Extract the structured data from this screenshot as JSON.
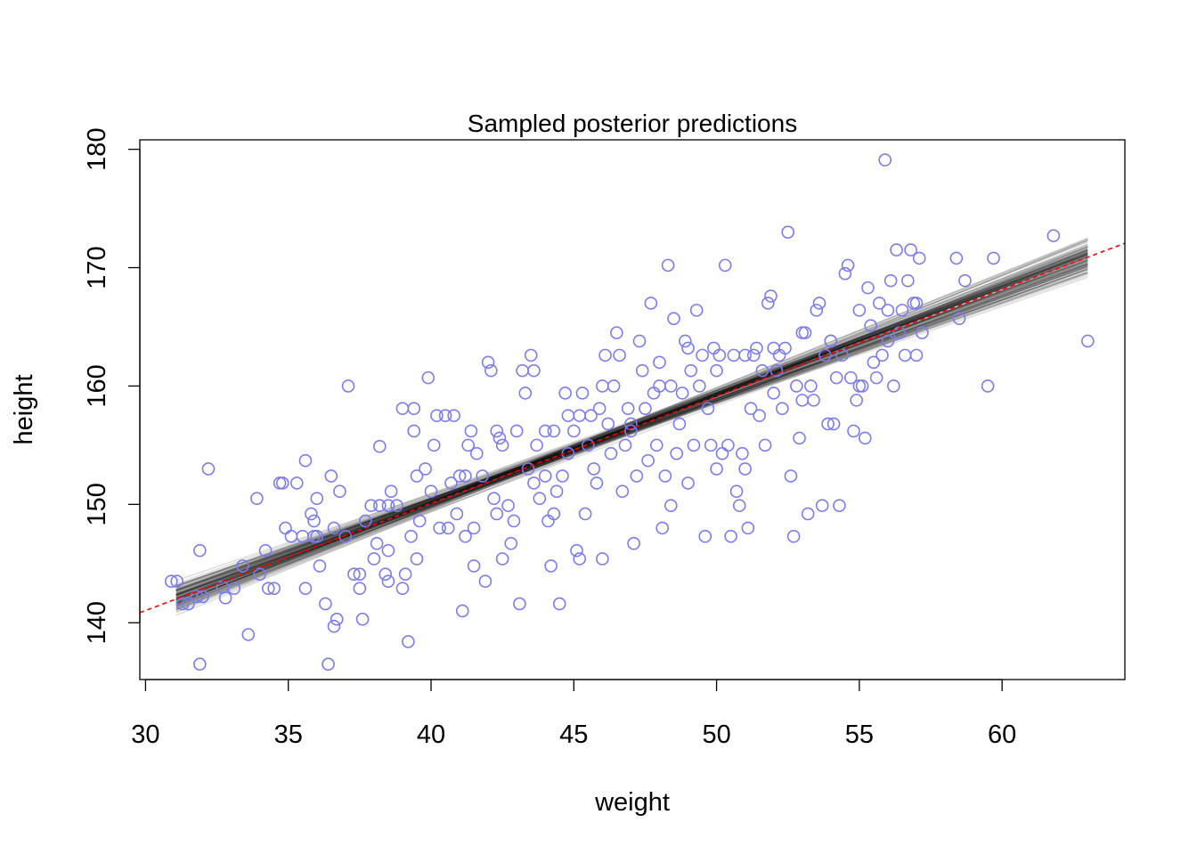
{
  "chart_data": {
    "type": "scatter",
    "title": "Sampled posterior predictions",
    "xlabel": "weight",
    "ylabel": "height",
    "xlim": [
      29.8,
      64.3
    ],
    "ylim": [
      135.2,
      180.8
    ],
    "x_ticks": [
      30,
      35,
      40,
      45,
      50,
      55,
      60
    ],
    "y_ticks": [
      140,
      150,
      160,
      170,
      180
    ],
    "x_tick_labels": [
      "30",
      "35",
      "40",
      "45",
      "50",
      "55",
      "60"
    ],
    "y_tick_labels": [
      "140",
      "150",
      "160",
      "170",
      "180"
    ],
    "grid": false,
    "legend": "none",
    "point_color": "#7b7bf0",
    "sample_line_color": "#000000",
    "mean_line_color": "#ff0000",
    "mean_line": {
      "intercept": 113.9,
      "slope": 0.9045,
      "style": "dashed"
    },
    "posterior_lines": {
      "count": 100,
      "x_range": [
        31.07,
        63.0
      ],
      "center_weight": 44.99,
      "center_height": 154.6,
      "slope_mean": 0.904,
      "slope_sd": 0.042,
      "intercept_sd": 0.27
    },
    "points": [
      [
        31.1,
        143.5
      ],
      [
        31.5,
        141.6
      ],
      [
        31.8,
        142.2
      ],
      [
        31.9,
        146.1
      ],
      [
        31.9,
        136.5
      ],
      [
        32.2,
        153.0
      ],
      [
        32.7,
        143.0
      ],
      [
        32.8,
        142.1
      ],
      [
        33.1,
        142.9
      ],
      [
        33.4,
        144.8
      ],
      [
        33.6,
        139.0
      ],
      [
        33.9,
        150.5
      ],
      [
        34.0,
        144.1
      ],
      [
        34.2,
        146.1
      ],
      [
        34.3,
        142.9
      ],
      [
        34.5,
        142.9
      ],
      [
        34.8,
        151.8
      ],
      [
        34.9,
        148.0
      ],
      [
        35.1,
        147.3
      ],
      [
        35.3,
        151.8
      ],
      [
        35.5,
        147.3
      ],
      [
        35.6,
        153.7
      ],
      [
        35.6,
        142.9
      ],
      [
        35.8,
        149.2
      ],
      [
        35.9,
        148.6
      ],
      [
        35.9,
        147.3
      ],
      [
        36.0,
        150.5
      ],
      [
        36.1,
        144.8
      ],
      [
        36.3,
        141.6
      ],
      [
        36.4,
        136.5
      ],
      [
        36.5,
        152.4
      ],
      [
        36.6,
        148.0
      ],
      [
        36.6,
        139.7
      ],
      [
        36.7,
        140.3
      ],
      [
        36.8,
        151.1
      ],
      [
        37.0,
        147.3
      ],
      [
        37.1,
        160.0
      ],
      [
        37.3,
        144.1
      ],
      [
        37.5,
        142.9
      ],
      [
        37.6,
        140.3
      ],
      [
        37.7,
        148.6
      ],
      [
        37.9,
        149.9
      ],
      [
        38.0,
        145.4
      ],
      [
        38.1,
        146.7
      ],
      [
        38.2,
        149.9
      ],
      [
        38.2,
        154.9
      ],
      [
        38.4,
        144.1
      ],
      [
        38.5,
        143.5
      ],
      [
        38.5,
        146.1
      ],
      [
        38.6,
        151.1
      ],
      [
        38.8,
        149.9
      ],
      [
        39.0,
        142.9
      ],
      [
        39.1,
        144.1
      ],
      [
        39.2,
        138.4
      ],
      [
        39.3,
        147.3
      ],
      [
        39.4,
        158.1
      ],
      [
        39.4,
        156.2
      ],
      [
        39.5,
        152.4
      ],
      [
        39.5,
        145.4
      ],
      [
        39.6,
        148.6
      ],
      [
        39.8,
        153.0
      ],
      [
        39.9,
        160.7
      ],
      [
        40.0,
        151.1
      ],
      [
        40.1,
        155.0
      ],
      [
        40.2,
        157.5
      ],
      [
        40.3,
        148.0
      ],
      [
        40.6,
        148.0
      ],
      [
        40.7,
        151.8
      ],
      [
        40.8,
        157.5
      ],
      [
        40.9,
        149.2
      ],
      [
        41.0,
        152.4
      ],
      [
        41.1,
        141.0
      ],
      [
        41.2,
        147.3
      ],
      [
        41.3,
        155.0
      ],
      [
        41.4,
        156.2
      ],
      [
        41.5,
        148.0
      ],
      [
        41.5,
        144.8
      ],
      [
        41.6,
        154.3
      ],
      [
        41.8,
        152.4
      ],
      [
        41.9,
        143.5
      ],
      [
        42.0,
        162.0
      ],
      [
        42.1,
        161.3
      ],
      [
        42.2,
        150.5
      ],
      [
        42.3,
        149.2
      ],
      [
        42.4,
        155.6
      ],
      [
        42.5,
        145.4
      ],
      [
        42.5,
        155.0
      ],
      [
        42.7,
        149.9
      ],
      [
        42.8,
        146.7
      ],
      [
        42.9,
        148.6
      ],
      [
        43.0,
        156.2
      ],
      [
        43.1,
        141.6
      ],
      [
        43.3,
        159.4
      ],
      [
        43.4,
        153.0
      ],
      [
        43.5,
        162.6
      ],
      [
        43.6,
        151.8
      ],
      [
        43.6,
        161.3
      ],
      [
        43.7,
        155.0
      ],
      [
        43.8,
        150.5
      ],
      [
        44.0,
        152.4
      ],
      [
        44.1,
        148.6
      ],
      [
        44.2,
        144.8
      ],
      [
        44.3,
        156.2
      ],
      [
        44.3,
        149.2
      ],
      [
        44.4,
        151.1
      ],
      [
        44.5,
        141.6
      ],
      [
        44.6,
        152.4
      ],
      [
        44.7,
        159.4
      ],
      [
        44.8,
        157.5
      ],
      [
        44.8,
        154.3
      ],
      [
        45.0,
        156.2
      ],
      [
        45.1,
        146.1
      ],
      [
        45.2,
        145.4
      ],
      [
        45.3,
        159.4
      ],
      [
        45.4,
        149.2
      ],
      [
        45.5,
        155.0
      ],
      [
        45.6,
        157.5
      ],
      [
        45.7,
        153.0
      ],
      [
        45.8,
        151.8
      ],
      [
        45.9,
        158.1
      ],
      [
        46.0,
        145.4
      ],
      [
        46.1,
        162.6
      ],
      [
        46.2,
        156.8
      ],
      [
        46.3,
        154.3
      ],
      [
        46.4,
        160.0
      ],
      [
        46.5,
        164.5
      ],
      [
        46.6,
        162.6
      ],
      [
        46.7,
        151.1
      ],
      [
        46.8,
        155.0
      ],
      [
        46.9,
        158.1
      ],
      [
        47.0,
        156.2
      ],
      [
        47.1,
        146.7
      ],
      [
        47.2,
        152.4
      ],
      [
        47.3,
        163.8
      ],
      [
        47.4,
        161.3
      ],
      [
        47.5,
        158.1
      ],
      [
        47.6,
        153.7
      ],
      [
        47.7,
        167.0
      ],
      [
        47.8,
        159.4
      ],
      [
        47.9,
        155.0
      ],
      [
        48.0,
        162.0
      ],
      [
        48.1,
        148.0
      ],
      [
        48.2,
        152.4
      ],
      [
        48.3,
        170.2
      ],
      [
        48.4,
        160.0
      ],
      [
        48.4,
        149.9
      ],
      [
        48.5,
        165.7
      ],
      [
        48.6,
        154.3
      ],
      [
        48.7,
        156.8
      ],
      [
        48.8,
        159.4
      ],
      [
        48.9,
        163.8
      ],
      [
        49.0,
        151.8
      ],
      [
        49.1,
        161.3
      ],
      [
        49.2,
        155.0
      ],
      [
        49.3,
        166.4
      ],
      [
        49.4,
        160.0
      ],
      [
        49.5,
        162.6
      ],
      [
        49.6,
        147.3
      ],
      [
        49.7,
        158.1
      ],
      [
        49.8,
        155.0
      ],
      [
        49.9,
        163.2
      ],
      [
        50.0,
        153.0
      ],
      [
        50.1,
        162.6
      ],
      [
        50.2,
        154.3
      ],
      [
        50.3,
        170.2
      ],
      [
        50.4,
        155.0
      ],
      [
        50.5,
        147.3
      ],
      [
        50.6,
        162.6
      ],
      [
        50.7,
        151.1
      ],
      [
        50.8,
        149.9
      ],
      [
        50.9,
        154.3
      ],
      [
        51.0,
        153.0
      ],
      [
        51.1,
        148.0
      ],
      [
        51.2,
        158.1
      ],
      [
        51.3,
        162.6
      ],
      [
        51.4,
        163.2
      ],
      [
        51.5,
        157.5
      ],
      [
        51.6,
        161.3
      ],
      [
        51.7,
        155.0
      ],
      [
        51.8,
        167.0
      ],
      [
        51.9,
        167.6
      ],
      [
        52.0,
        159.4
      ],
      [
        52.1,
        161.3
      ],
      [
        52.2,
        162.6
      ],
      [
        52.3,
        158.1
      ],
      [
        52.4,
        163.2
      ],
      [
        52.5,
        173.0
      ],
      [
        52.6,
        152.4
      ],
      [
        52.7,
        147.3
      ],
      [
        52.8,
        160.0
      ],
      [
        52.9,
        155.6
      ],
      [
        53.0,
        158.8
      ],
      [
        53.1,
        164.5
      ],
      [
        53.2,
        149.2
      ],
      [
        53.3,
        160.0
      ],
      [
        53.4,
        158.8
      ],
      [
        53.5,
        166.4
      ],
      [
        53.6,
        167.0
      ],
      [
        53.7,
        149.9
      ],
      [
        53.8,
        162.6
      ],
      [
        53.9,
        156.8
      ],
      [
        54.0,
        163.8
      ],
      [
        54.1,
        156.8
      ],
      [
        54.2,
        160.7
      ],
      [
        54.3,
        149.9
      ],
      [
        54.4,
        162.6
      ],
      [
        54.5,
        169.5
      ],
      [
        54.6,
        170.2
      ],
      [
        54.7,
        160.7
      ],
      [
        54.8,
        156.2
      ],
      [
        54.9,
        158.8
      ],
      [
        55.0,
        160.0
      ],
      [
        55.1,
        160.0
      ],
      [
        55.2,
        155.6
      ],
      [
        55.3,
        168.3
      ],
      [
        55.4,
        165.1
      ],
      [
        55.5,
        162.0
      ],
      [
        55.6,
        160.7
      ],
      [
        55.7,
        167.0
      ],
      [
        55.8,
        162.6
      ],
      [
        55.9,
        179.1
      ],
      [
        56.0,
        163.8
      ],
      [
        56.1,
        168.9
      ],
      [
        56.2,
        160.0
      ],
      [
        56.3,
        171.5
      ],
      [
        56.4,
        164.5
      ],
      [
        56.5,
        166.4
      ],
      [
        56.6,
        162.6
      ],
      [
        56.7,
        168.9
      ],
      [
        56.8,
        171.5
      ],
      [
        56.9,
        167.0
      ],
      [
        57.0,
        162.6
      ],
      [
        57.1,
        170.8
      ],
      [
        57.2,
        164.5
      ],
      [
        58.5,
        165.7
      ],
      [
        59.5,
        160.0
      ],
      [
        59.7,
        170.8
      ],
      [
        61.8,
        172.7
      ],
      [
        63.0,
        163.8
      ],
      [
        30.9,
        143.5
      ],
      [
        31.3,
        141.6
      ],
      [
        32.0,
        142.2
      ],
      [
        34.7,
        151.8
      ],
      [
        36.0,
        147.3
      ],
      [
        37.5,
        144.1
      ],
      [
        38.5,
        149.9
      ],
      [
        39.0,
        158.1
      ],
      [
        40.5,
        157.5
      ],
      [
        41.2,
        152.4
      ],
      [
        42.3,
        156.2
      ],
      [
        43.2,
        161.3
      ],
      [
        44.0,
        156.2
      ],
      [
        45.2,
        157.5
      ],
      [
        46.0,
        160.0
      ],
      [
        47.0,
        156.8
      ],
      [
        48.0,
        160.0
      ],
      [
        49.0,
        163.2
      ],
      [
        50.0,
        161.3
      ],
      [
        51.0,
        162.6
      ],
      [
        52.0,
        163.2
      ],
      [
        53.0,
        164.5
      ],
      [
        54.0,
        163.8
      ],
      [
        55.0,
        166.4
      ],
      [
        56.0,
        166.4
      ],
      [
        57.0,
        167.0
      ],
      [
        58.4,
        170.8
      ],
      [
        58.7,
        168.9
      ]
    ]
  }
}
